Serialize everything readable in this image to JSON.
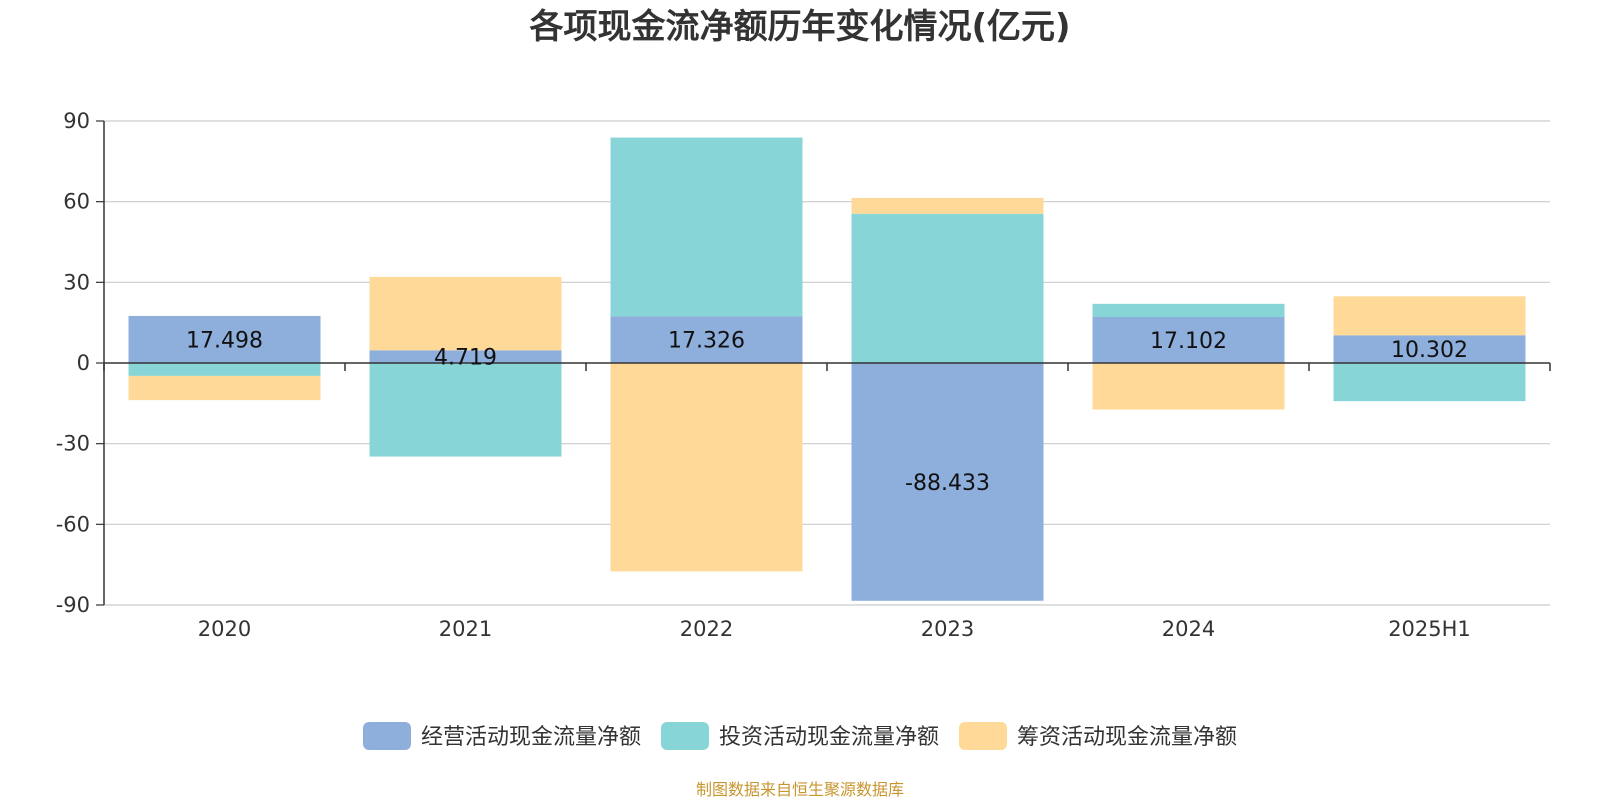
{
  "chart_data": {
    "type": "bar",
    "stacked": true,
    "title": "各项现金流净额历年变化情况(亿元)",
    "categories": [
      "2020",
      "2021",
      "2022",
      "2023",
      "2024",
      "2025H1"
    ],
    "ylim": [
      -90,
      90
    ],
    "yticks": [
      90,
      60,
      30,
      0,
      -30,
      -60,
      -90
    ],
    "grid": true,
    "legend_position": "bottom",
    "series": [
      {
        "name": "经营活动现金流量净额",
        "color": "#8eaedc",
        "values": [
          17.498,
          4.719,
          17.326,
          -88.433,
          17.102,
          10.302
        ],
        "labels": [
          "17.498",
          "4.719",
          "17.326",
          "-88.433",
          "17.102",
          "10.302"
        ]
      },
      {
        "name": "投资活动现金流量净额",
        "color": "#88d5d8",
        "values": [
          -4.8,
          -34.8,
          66.5,
          55.5,
          4.9,
          -14.2
        ]
      },
      {
        "name": "筹资活动现金流量净额",
        "color": "#fed998",
        "values": [
          -9.0,
          27.3,
          -77.5,
          5.9,
          -17.3,
          14.5
        ]
      }
    ],
    "source": "制图数据来自恒生聚源数据库"
  }
}
